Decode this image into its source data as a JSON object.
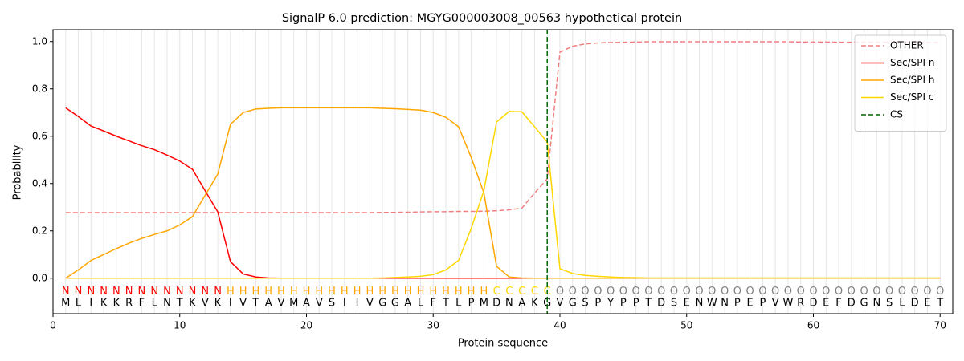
{
  "chart_data": {
    "type": "line",
    "title": "SignalP 6.0 prediction: MGYG000003008_00563 hypothetical protein",
    "xlabel": "Protein sequence",
    "ylabel": "Probability",
    "x": [
      1,
      2,
      3,
      4,
      5,
      6,
      7,
      8,
      9,
      10,
      11,
      12,
      13,
      14,
      15,
      16,
      17,
      18,
      19,
      20,
      21,
      22,
      23,
      24,
      25,
      26,
      27,
      28,
      29,
      30,
      31,
      32,
      33,
      34,
      35,
      36,
      37,
      38,
      39,
      40,
      41,
      42,
      43,
      44,
      45,
      46,
      47,
      48,
      49,
      50,
      51,
      52,
      53,
      54,
      55,
      56,
      57,
      58,
      59,
      60,
      61,
      62,
      63,
      64,
      65,
      66,
      67,
      68,
      69,
      70
    ],
    "sequence": [
      "M",
      "L",
      "I",
      "K",
      "K",
      "R",
      "F",
      "L",
      "N",
      "T",
      "K",
      "V",
      "K",
      "I",
      "V",
      "T",
      "A",
      "V",
      "M",
      "A",
      "V",
      "S",
      "I",
      "I",
      "V",
      "G",
      "G",
      "A",
      "L",
      "F",
      "T",
      "L",
      "P",
      "M",
      "D",
      "N",
      "A",
      "K",
      "G",
      "V",
      "G",
      "S",
      "P",
      "Y",
      "P",
      "P",
      "T",
      "D",
      "S",
      "E",
      "N",
      "W",
      "N",
      "P",
      "E",
      "P",
      "V",
      "W",
      "R",
      "D",
      "E",
      "F",
      "D",
      "G",
      "N",
      "S",
      "L",
      "D",
      "E",
      "T"
    ],
    "region_labels": [
      "N",
      "N",
      "N",
      "N",
      "N",
      "N",
      "N",
      "N",
      "N",
      "N",
      "N",
      "N",
      "N",
      "H",
      "H",
      "H",
      "H",
      "H",
      "H",
      "H",
      "H",
      "H",
      "H",
      "H",
      "H",
      "H",
      "H",
      "H",
      "H",
      "H",
      "H",
      "H",
      "H",
      "H",
      "C",
      "C",
      "C",
      "C",
      "C",
      "O",
      "O",
      "O",
      "O",
      "O",
      "O",
      "O",
      "O",
      "O",
      "O",
      "O",
      "O",
      "O",
      "O",
      "O",
      "O",
      "O",
      "O",
      "O",
      "O",
      "O",
      "O",
      "O",
      "O",
      "O",
      "O",
      "O",
      "O",
      "O",
      "O",
      "O"
    ],
    "region_colors": {
      "N": "red",
      "H": "orange",
      "C": "gold",
      "O": "gray"
    },
    "series": [
      {
        "name": "OTHER",
        "color": "#f08080",
        "linestyle": "dashed",
        "values": [
          0.277,
          0.277,
          0.277,
          0.277,
          0.277,
          0.277,
          0.277,
          0.277,
          0.277,
          0.277,
          0.277,
          0.277,
          0.277,
          0.277,
          0.277,
          0.277,
          0.277,
          0.277,
          0.277,
          0.277,
          0.277,
          0.277,
          0.277,
          0.277,
          0.277,
          0.278,
          0.278,
          0.279,
          0.28,
          0.281,
          0.281,
          0.282,
          0.282,
          0.283,
          0.285,
          0.289,
          0.296,
          0.36,
          0.42,
          0.955,
          0.98,
          0.99,
          0.994,
          0.996,
          0.997,
          0.998,
          0.999,
          0.999,
          0.999,
          0.999,
          0.999,
          0.999,
          0.999,
          0.999,
          0.999,
          0.999,
          0.999,
          0.999,
          0.998,
          0.998,
          0.998,
          0.997,
          0.997,
          0.997,
          0.997,
          0.996,
          0.996,
          0.996,
          0.996,
          0.996
        ]
      },
      {
        "name": "Sec/SPI n",
        "color": "red",
        "linestyle": "solid",
        "values": [
          0.72,
          0.683,
          0.643,
          0.622,
          0.6,
          0.58,
          0.56,
          0.543,
          0.52,
          0.495,
          0.46,
          0.37,
          0.28,
          0.07,
          0.018,
          0.005,
          0.001,
          0,
          0,
          0,
          0,
          0,
          0,
          0,
          0,
          0,
          0,
          0,
          0,
          0,
          0,
          0,
          0,
          0,
          0,
          0,
          0,
          0,
          0,
          0,
          0,
          0,
          0,
          0,
          0,
          0,
          0,
          0,
          0,
          0,
          0,
          0,
          0,
          0,
          0,
          0,
          0,
          0,
          0,
          0,
          0,
          0,
          0,
          0,
          0,
          0,
          0,
          0,
          0,
          0
        ]
      },
      {
        "name": "Sec/SPI h",
        "color": "orange",
        "linestyle": "solid",
        "values": [
          0,
          0.035,
          0.075,
          0.1,
          0.125,
          0.148,
          0.168,
          0.185,
          0.2,
          0.225,
          0.26,
          0.35,
          0.44,
          0.65,
          0.7,
          0.715,
          0.718,
          0.72,
          0.72,
          0.72,
          0.72,
          0.72,
          0.72,
          0.72,
          0.72,
          0.718,
          0.716,
          0.713,
          0.71,
          0.7,
          0.68,
          0.64,
          0.51,
          0.36,
          0.05,
          0.005,
          0.001,
          0,
          0,
          0,
          0,
          0,
          0,
          0,
          0,
          0,
          0,
          0,
          0,
          0,
          0,
          0,
          0,
          0,
          0,
          0,
          0,
          0,
          0,
          0,
          0,
          0,
          0,
          0,
          0,
          0,
          0,
          0,
          0,
          0
        ]
      },
      {
        "name": "Sec/SPI c",
        "color": "gold",
        "linestyle": "solid",
        "values": [
          0,
          0,
          0,
          0,
          0,
          0,
          0,
          0,
          0,
          0,
          0,
          0,
          0,
          0,
          0,
          0,
          0,
          0,
          0,
          0,
          0,
          0,
          0,
          0,
          0,
          0.001,
          0.003,
          0.005,
          0.008,
          0.015,
          0.035,
          0.075,
          0.21,
          0.37,
          0.66,
          0.705,
          0.703,
          0.64,
          0.575,
          0.04,
          0.02,
          0.012,
          0.008,
          0.005,
          0.003,
          0.002,
          0.001,
          0.001,
          0.001,
          0.001,
          0.001,
          0.001,
          0.001,
          0.001,
          0.001,
          0.001,
          0.001,
          0.001,
          0.001,
          0.001,
          0.001,
          0.001,
          0.001,
          0.001,
          0.001,
          0.001,
          0.001,
          0.001,
          0.001,
          0.001
        ]
      }
    ],
    "cs": {
      "name": "CS",
      "x": 39,
      "color": "darkgreen",
      "linestyle": "dashed"
    },
    "xlim": [
      0,
      71
    ],
    "ylim": [
      -0.15,
      1.05
    ],
    "xticks": [
      0,
      10,
      20,
      30,
      40,
      50,
      60,
      70
    ],
    "yticks": [
      {
        "value": 0,
        "label": "0.0"
      },
      {
        "value": 0.2,
        "label": "0.2"
      },
      {
        "value": 0.4,
        "label": "0.4"
      },
      {
        "value": 0.6,
        "label": "0.6"
      },
      {
        "value": 0.8,
        "label": "0.8"
      },
      {
        "value": 1,
        "label": "1.0"
      }
    ],
    "legend": "upper right"
  }
}
